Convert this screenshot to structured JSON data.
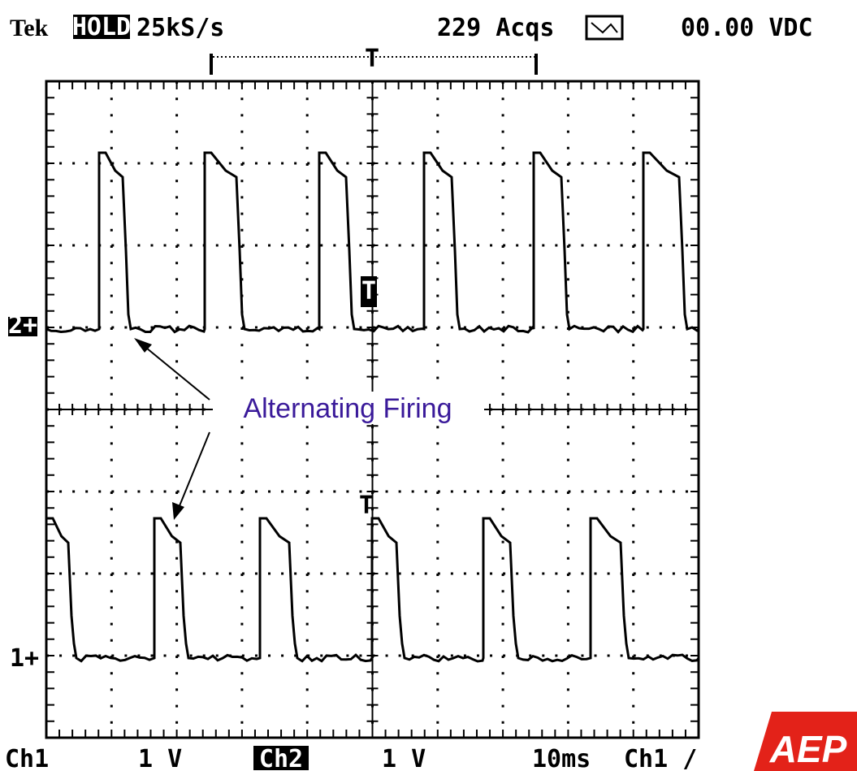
{
  "header": {
    "brand": "Tek",
    "mode": "HOLD",
    "rate": "25kS/s",
    "acquisitions": "229 Acqs",
    "readout": "00.00 VDC"
  },
  "trigger_marker": "T",
  "channel_markers": {
    "ch2": "2+",
    "ch1": "1+",
    "trigger_level_ch2": "T",
    "trigger_level_ch1": "T"
  },
  "annotation": "Alternating Firing",
  "footer": {
    "ch1_label": "Ch1",
    "ch1_scale": "1 V",
    "ch2_label": "Ch2",
    "ch2_scale": "1 V",
    "timebase": "10ms",
    "trigger_source": "Ch1 /"
  },
  "logo": "AEP"
}
